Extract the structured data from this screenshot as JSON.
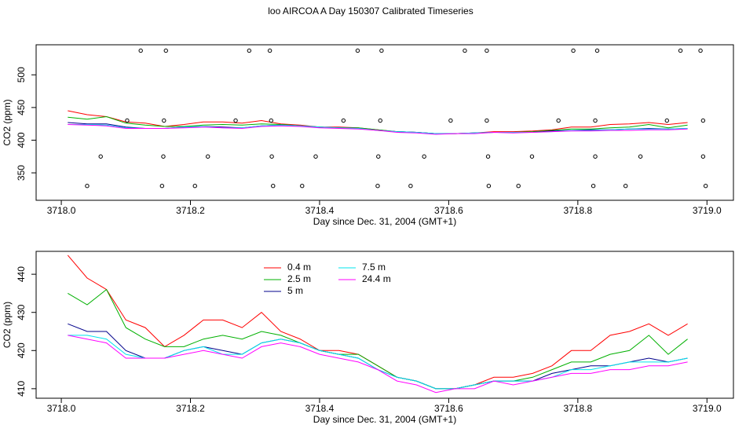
{
  "chart_data": [
    {
      "type": "line",
      "title": "loo AIRCOA A  Day 150307  Calibrated Timeseries",
      "xlabel": "Day since Dec. 31, 2004 (GMT+1)",
      "ylabel": "CO2 (ppm)",
      "xlim": [
        3717.961,
        3719.041
      ],
      "ylim": [
        308,
        546
      ],
      "xticks": [
        {
          "value": 3718,
          "label": "3718.0"
        },
        3718.2,
        3718.4,
        3718.6,
        3718.8,
        {
          "value": 3719,
          "label": "3719.0"
        }
      ],
      "yticks": [
        350,
        400,
        450,
        500
      ],
      "x": [
        3718.01,
        3718.04,
        3718.07,
        3718.1,
        3718.13,
        3718.16,
        3718.19,
        3718.22,
        3718.25,
        3718.28,
        3718.31,
        3718.34,
        3718.37,
        3718.4,
        3718.43,
        3718.46,
        3718.49,
        3718.52,
        3718.55,
        3718.58,
        3718.61,
        3718.64,
        3718.67,
        3718.7,
        3718.73,
        3718.76,
        3718.79,
        3718.82,
        3718.85,
        3718.88,
        3718.91,
        3718.94,
        3718.97
      ],
      "series": [
        {
          "color": "#ff0000",
          "values": [
            445,
            439,
            436,
            428,
            426,
            421,
            424,
            428,
            428,
            426,
            430,
            425,
            423,
            420,
            420,
            419,
            416,
            413,
            412,
            410,
            410,
            411,
            413,
            413,
            414,
            416,
            420,
            420,
            424,
            425,
            427,
            424,
            427
          ]
        },
        {
          "color": "#00b000",
          "values": [
            435,
            432,
            436,
            426,
            423,
            421,
            421,
            423,
            424,
            423,
            425,
            424,
            422,
            420,
            419,
            419,
            416,
            413,
            412,
            410,
            410,
            411,
            412,
            412,
            413,
            415,
            417,
            417,
            419,
            420,
            424,
            419,
            423
          ]
        },
        {
          "color": "#00008b",
          "values": [
            427,
            425,
            425,
            420,
            418,
            418,
            420,
            421,
            420,
            419,
            422,
            423,
            422,
            420,
            419,
            418,
            415,
            413,
            412,
            410,
            410,
            411,
            412,
            412,
            412,
            414,
            415,
            416,
            416,
            417,
            418,
            417,
            418
          ]
        },
        {
          "color": "#00e5ee",
          "values": [
            424,
            424,
            423,
            419,
            418,
            418,
            420,
            421,
            419,
            419,
            422,
            423,
            422,
            420,
            419,
            418,
            415,
            413,
            412,
            410,
            410,
            411,
            412,
            412,
            412,
            413,
            415,
            415,
            416,
            417,
            417,
            417,
            418
          ]
        },
        {
          "color": "#ff00ff",
          "values": [
            424,
            423,
            422,
            418,
            418,
            418,
            419,
            420,
            419,
            418,
            421,
            422,
            421,
            419,
            418,
            417,
            415,
            412,
            411,
            409,
            410,
            410,
            412,
            411,
            412,
            413,
            414,
            414,
            415,
            415,
            416,
            416,
            417
          ]
        }
      ],
      "points": {
        "x": [
          3718.123,
          3718.162,
          3718.291,
          3718.323,
          3718.459,
          3718.496,
          3718.625,
          3718.659,
          3718.793,
          3718.83,
          3718.959,
          3718.99,
          3718.102,
          3718.159,
          3718.27,
          3718.325,
          3718.437,
          3718.494,
          3718.603,
          3718.659,
          3718.77,
          3718.827,
          3718.938,
          3718.994,
          3718.061,
          3718.158,
          3718.227,
          3718.326,
          3718.394,
          3718.491,
          3718.562,
          3718.661,
          3718.729,
          3718.827,
          3718.897,
          3718.994,
          3718.04,
          3718.156,
          3718.207,
          3718.328,
          3718.373,
          3718.49,
          3718.541,
          3718.662,
          3718.708,
          3718.824,
          3718.874,
          3718.998
        ],
        "y": [
          537,
          537,
          537,
          537,
          537,
          537,
          537,
          537,
          537,
          537,
          537,
          537,
          430,
          430,
          430,
          430,
          430,
          430,
          430,
          430,
          430,
          430,
          430,
          430,
          375,
          375,
          375,
          375,
          375,
          375,
          375,
          375,
          375,
          375,
          375,
          375,
          330,
          330,
          330,
          330,
          330,
          330,
          330,
          330,
          330,
          330,
          330,
          330
        ]
      }
    },
    {
      "type": "line",
      "xlabel": "Day since Dec. 31, 2004 (GMT+1)",
      "ylabel": "CO2 (ppm)",
      "xlim": [
        3717.961,
        3719.041
      ],
      "ylim": [
        407.5,
        446
      ],
      "xticks": [
        {
          "value": 3718,
          "label": "3718.0"
        },
        3718.2,
        3718.4,
        3718.6,
        3718.8,
        {
          "value": 3719,
          "label": "3719.0"
        }
      ],
      "yticks": [
        410,
        420,
        430,
        440
      ],
      "x": [
        3718.01,
        3718.04,
        3718.07,
        3718.1,
        3718.13,
        3718.16,
        3718.19,
        3718.22,
        3718.25,
        3718.28,
        3718.31,
        3718.34,
        3718.37,
        3718.4,
        3718.43,
        3718.46,
        3718.49,
        3718.52,
        3718.55,
        3718.58,
        3718.61,
        3718.64,
        3718.67,
        3718.7,
        3718.73,
        3718.76,
        3718.79,
        3718.82,
        3718.85,
        3718.88,
        3718.91,
        3718.94,
        3718.97
      ],
      "legend": "top-left",
      "series": [
        {
          "name": "0.4 m",
          "color": "#ff0000",
          "values": [
            445,
            439,
            436,
            428,
            426,
            421,
            424,
            428,
            428,
            426,
            430,
            425,
            423,
            420,
            420,
            419,
            416,
            413,
            412,
            410,
            410,
            411,
            413,
            413,
            414,
            416,
            420,
            420,
            424,
            425,
            427,
            424,
            427
          ]
        },
        {
          "name": "2.5 m",
          "color": "#00b000",
          "values": [
            435,
            432,
            436,
            426,
            423,
            421,
            421,
            423,
            424,
            423,
            425,
            424,
            422,
            420,
            419,
            419,
            416,
            413,
            412,
            410,
            410,
            411,
            412,
            412,
            413,
            415,
            417,
            417,
            419,
            420,
            424,
            419,
            423
          ]
        },
        {
          "name": "5 m",
          "color": "#00008b",
          "values": [
            427,
            425,
            425,
            420,
            418,
            418,
            420,
            421,
            420,
            419,
            422,
            423,
            422,
            420,
            419,
            418,
            415,
            413,
            412,
            410,
            410,
            411,
            412,
            412,
            412,
            414,
            415,
            416,
            416,
            417,
            418,
            417,
            418
          ]
        },
        {
          "name": "7.5 m",
          "color": "#00e5ee",
          "values": [
            424,
            424,
            423,
            419,
            418,
            418,
            420,
            421,
            419,
            419,
            422,
            423,
            422,
            420,
            419,
            418,
            415,
            413,
            412,
            410,
            410,
            411,
            412,
            412,
            412,
            413,
            415,
            415,
            416,
            417,
            417,
            417,
            418
          ]
        },
        {
          "name": "24.4 m",
          "color": "#ff00ff",
          "values": [
            424,
            423,
            422,
            418,
            418,
            418,
            419,
            420,
            419,
            418,
            421,
            422,
            421,
            419,
            418,
            417,
            415,
            412,
            411,
            409,
            410,
            410,
            412,
            411,
            412,
            413,
            414,
            414,
            415,
            415,
            416,
            416,
            417
          ]
        }
      ]
    }
  ]
}
